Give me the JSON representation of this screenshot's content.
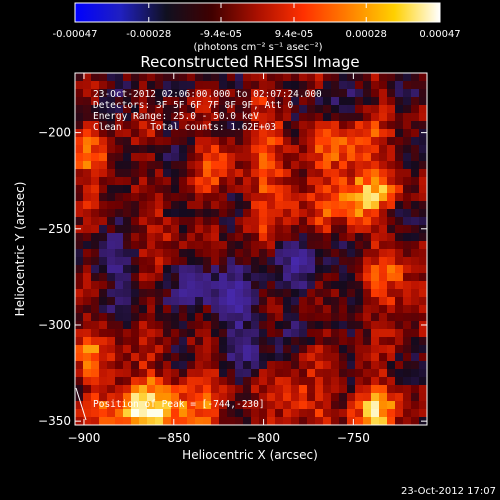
{
  "colorbar": {
    "stops": [
      "#0000ff",
      "#2020c0",
      "#101020",
      "#400000",
      "#aa1000",
      "#ff3000",
      "#ff8000",
      "#ffd000",
      "#ffffff"
    ],
    "tick_labels": [
      "-0.00047",
      "-0.00028",
      "-9.4e-05",
      "9.4e-05",
      "0.00028",
      "0.00047"
    ],
    "units_label": "(photons cm⁻² s⁻¹ asec⁻²)"
  },
  "chart_data": {
    "type": "heatmap",
    "title": "Reconstructed RHESSI Image",
    "xlabel": "Heliocentric X (arcsec)",
    "ylabel": "Heliocentric Y (arcsec)",
    "xlim": [
      -905,
      -709
    ],
    "ylim": [
      -352,
      -169
    ],
    "xticks": [
      -900,
      -850,
      -800,
      -750
    ],
    "yticks": [
      -200,
      -250,
      -300,
      -350
    ],
    "grid": false,
    "value_range": [
      -0.00047,
      0.00047
    ],
    "annotations": [
      "23-Oct-2012 02:06:00.000 to 02:07:24.000",
      "Detectors: 3F 5F 6F 7F 8F 9F, Att 0",
      "Energy Range: 25.0 - 50.0 keV",
      "Clean     Total counts: 1.62E+03"
    ],
    "peak_label": "Position of Peak = [-744,-230]",
    "peak_position": [
      -744,
      -230
    ]
  },
  "footer": {
    "timestamp": "23-Oct-2012 17:07"
  }
}
